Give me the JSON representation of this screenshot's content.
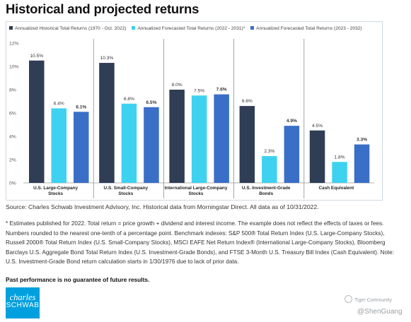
{
  "title": "Historical and projected returns",
  "colors": {
    "historical": "#2f3d55",
    "forecast2022": "#3ed2f0",
    "forecast2023": "#3a6fc7"
  },
  "legend": [
    {
      "label": "Annualized Historical Total Returns (1970 - Oct. 2022)",
      "color": "#2f3d55"
    },
    {
      "label": "Annualized Forecasted Total Returns (2022 - 2031)*",
      "color": "#3ed2f0"
    },
    {
      "label": "Annualized Forecasted Total Returns (2023 - 2032)",
      "color": "#3a6fc7"
    }
  ],
  "chart_data": {
    "type": "bar",
    "categories": [
      [
        "U.S. Large-Company",
        "Stocks"
      ],
      [
        "U.S. Small-Company",
        "Stocks"
      ],
      [
        "International Large-Company",
        "Stocks"
      ],
      [
        "U.S. Investment-Grade",
        "Bonds"
      ],
      [
        "Cash Equivalent"
      ]
    ],
    "series": [
      {
        "name": "Annualized Historical Total Returns (1970 - Oct. 2022)",
        "values": [
          10.5,
          10.3,
          8.0,
          6.6,
          4.5
        ],
        "labels": [
          "10.5%",
          "10.3%",
          "8.0%",
          "6.6%",
          "4.5%"
        ],
        "bold": false
      },
      {
        "name": "Annualized Forecasted Total Returns (2022 - 2031)*",
        "values": [
          6.4,
          6.8,
          7.5,
          2.3,
          1.8
        ],
        "labels": [
          "6.4%",
          "6.8%",
          "7.5%",
          "2.3%",
          "1.8%"
        ],
        "bold": false
      },
      {
        "name": "Annualized Forecasted Total Returns (2023 - 2032)",
        "values": [
          6.1,
          6.5,
          7.6,
          4.9,
          3.3
        ],
        "labels": [
          "6.1%",
          "6.5%",
          "7.6%",
          "4.9%",
          "3.3%"
        ],
        "bold": true
      }
    ],
    "ylim": [
      0,
      12
    ],
    "yticks": [
      "0%",
      "2%",
      "4%",
      "6%",
      "8%",
      "10%",
      "12%"
    ],
    "grid": false,
    "legend_position": "top"
  },
  "source": "Source: Charles Schwab Investment Advisory, Inc. Historical data from Morningstar Direct. All data as of 10/31/2022.",
  "footnote": "* Estimates published for 2022. Total return = price growth + dividend and interest income. The example does not reflect the effects of taxes or fees. Numbers rounded to the nearest one-tenth of a percentage point. Benchmark indexes: S&P 500® Total Return Index (U.S. Large-Company Stocks), Russell 2000® Total Return Index (U.S. Small-Company Stocks), MSCI EAFE Net Return Index® (International Large-Company Stocks), Bloomberg Barclays U.S. Aggregate Bond Total Return Index (U.S. Investment-Grade Bonds), and FTSE 3-Month U.S. Treasury Bill Index (Cash Equivalent). Note: U.S. Investment-Grade Bond return calculation starts in 1/30/1976 due to lack of prior data.",
  "disclaimer": "Past performance is no guarantee of future results.",
  "logo": {
    "line1": "charles",
    "line2": "SCHWAB"
  },
  "watermark": {
    "line1": "Tiger Community",
    "line2": "@ShenGuang"
  }
}
